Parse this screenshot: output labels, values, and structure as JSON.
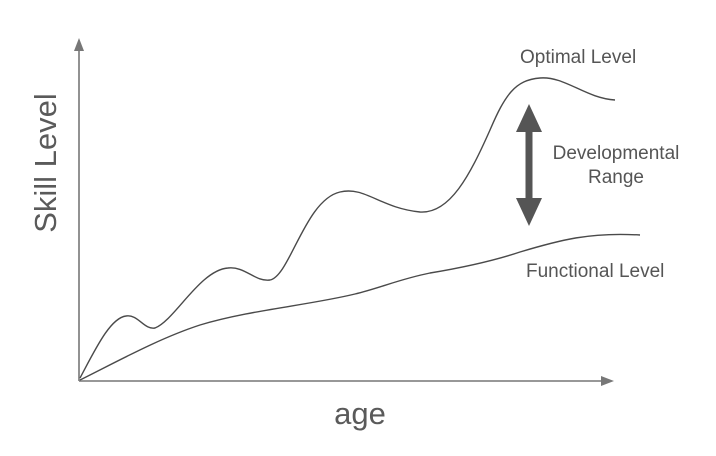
{
  "diagram": {
    "x_axis_label": "age",
    "y_axis_label": "Skill Level",
    "optimal_curve_label": "Optimal Level",
    "functional_curve_label": "Functional Level",
    "range_label_line1": "Developmental",
    "range_label_line2": "Range"
  },
  "colors": {
    "axis": "#777777",
    "curve": "#4a4a4a",
    "arrow": "#555555",
    "text": "#555555"
  }
}
